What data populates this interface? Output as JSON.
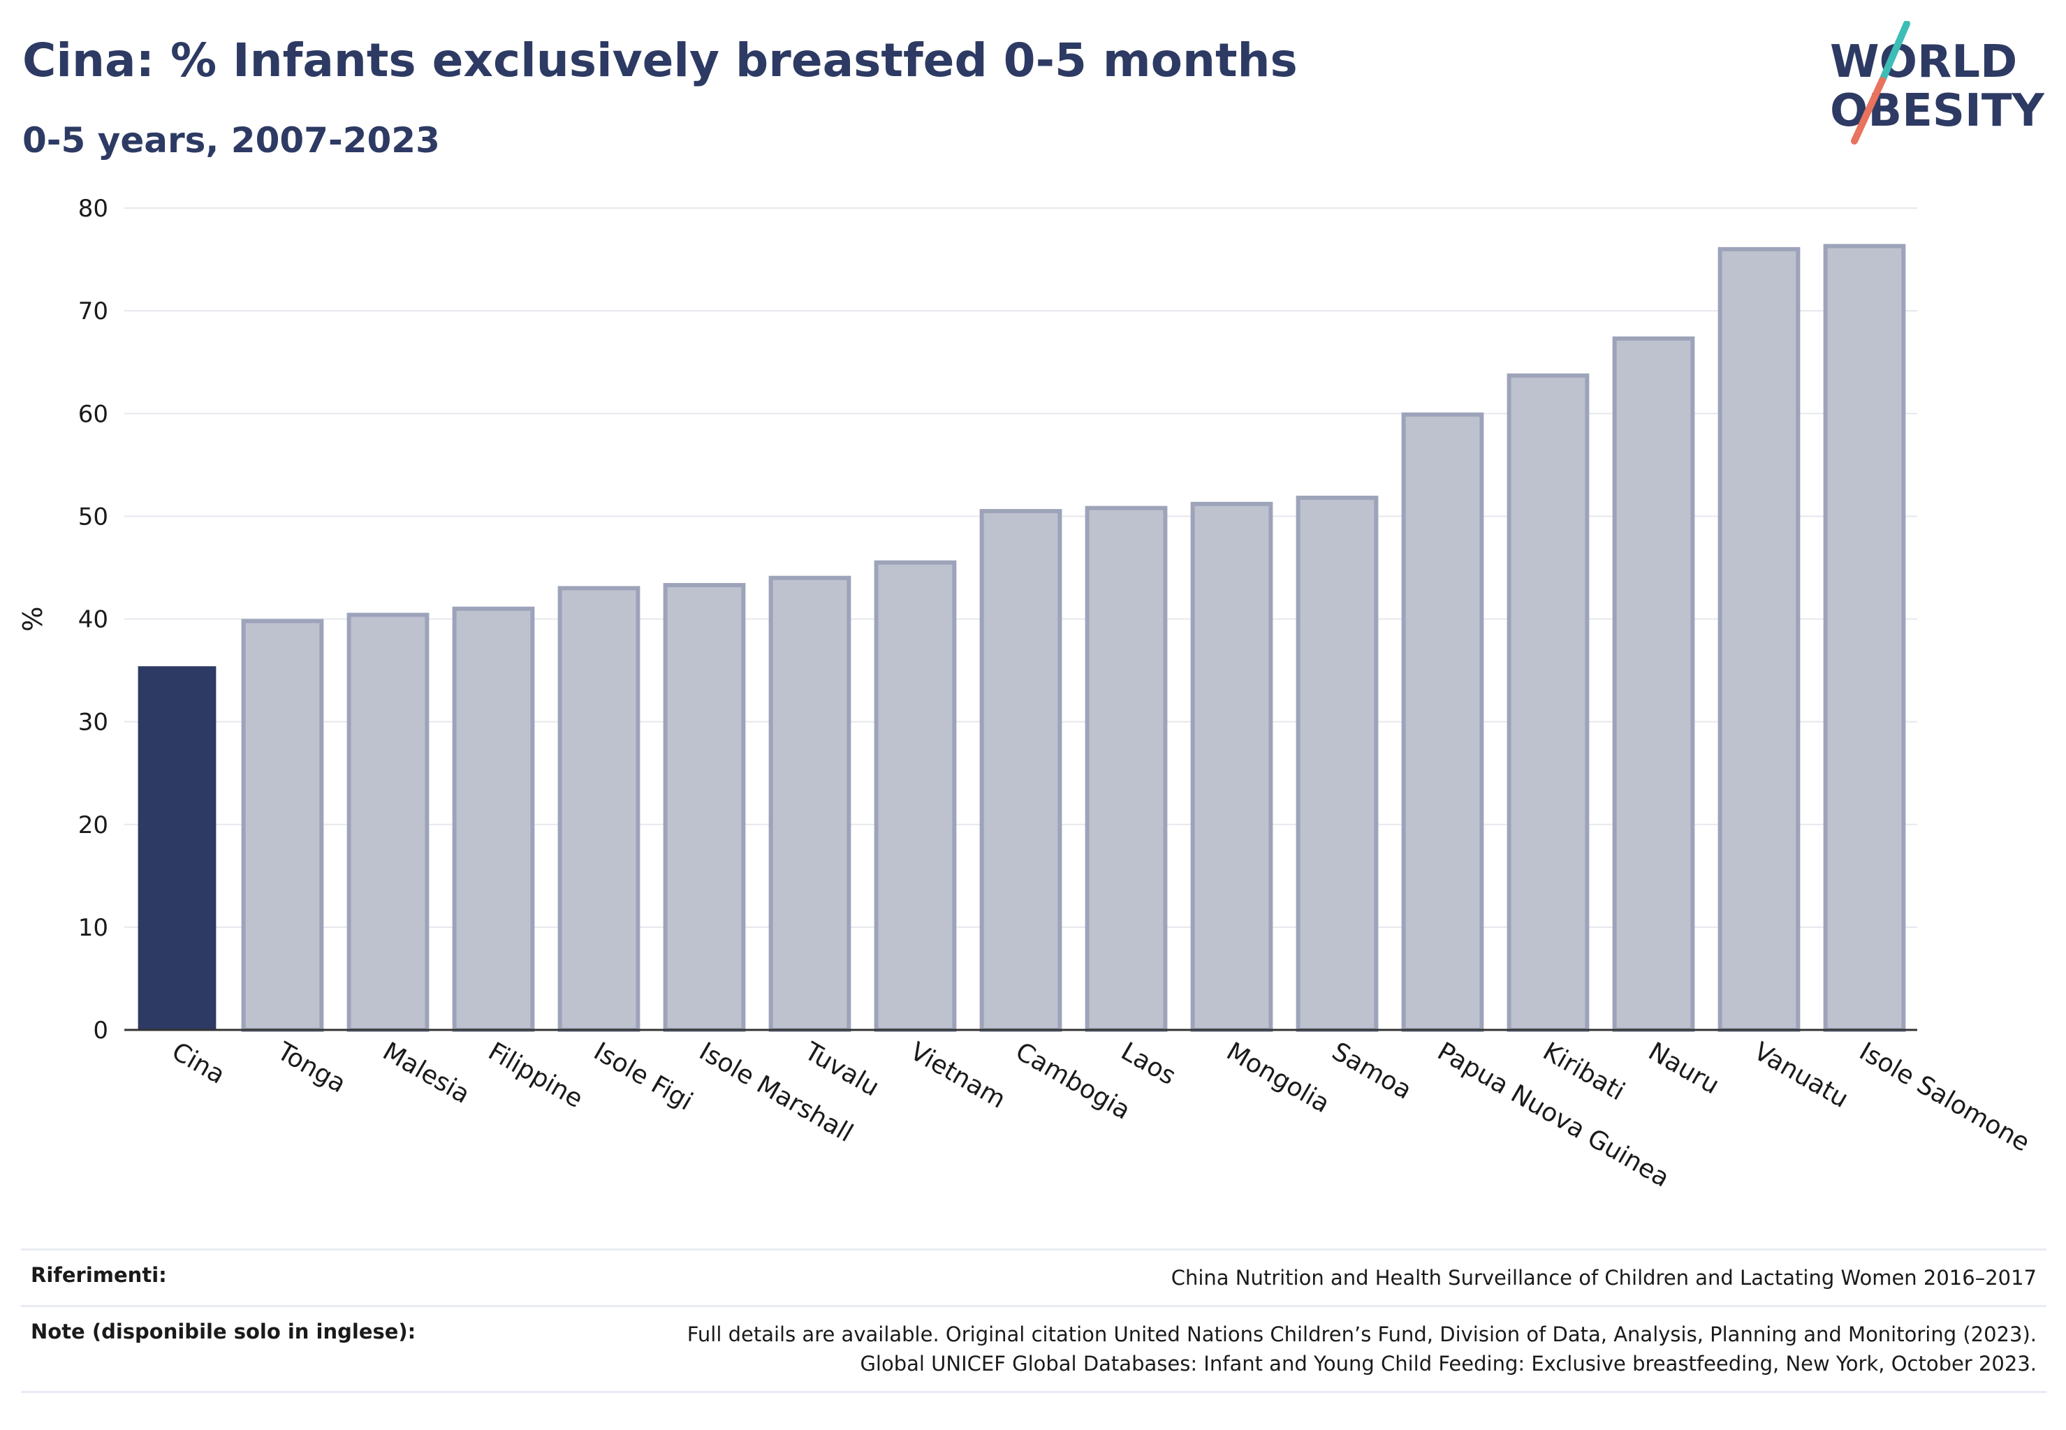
{
  "header": {
    "title": "Cina: % Infants exclusively breastfed 0-5 months",
    "subtitle": "0-5 years, 2007-2023"
  },
  "logo": {
    "line1": "WORLD",
    "line2": "OBESITY",
    "accent_teal": "#3dbdb6",
    "accent_coral": "#e8735e",
    "text_color": "#2d3a63"
  },
  "colors": {
    "highlight": "#2d3a63",
    "bar_fill": "#bec2cf",
    "bar_stroke": "#9da3b9",
    "grid": "#e6e8ee"
  },
  "chart_data": {
    "type": "bar",
    "ylabel": "%",
    "xlabel": "",
    "ylim": [
      0,
      80
    ],
    "yticks": [
      0,
      10,
      20,
      30,
      40,
      50,
      60,
      70,
      80
    ],
    "grid": true,
    "highlight": "Cina",
    "categories": [
      "Cina",
      "Tonga",
      "Malesia",
      "Filippine",
      "Isole Figi",
      "Isole Marshall",
      "Tuvalu",
      "Vietnam",
      "Cambogia",
      "Laos",
      "Mongolia",
      "Samoa",
      "Papua Nuova Guinea",
      "Kiribati",
      "Nauru",
      "Vanuatu",
      "Isole Salomone"
    ],
    "values": [
      35.4,
      39.8,
      40.4,
      41.0,
      43.0,
      43.3,
      44.0,
      45.5,
      50.5,
      50.8,
      51.2,
      51.8,
      59.9,
      63.7,
      67.3,
      76.0,
      76.3
    ]
  },
  "footer": {
    "references_label": "Riferimenti:",
    "references_value": "China Nutrition and Health Surveillance of Children and Lactating Women 2016–2017",
    "notes_label": "Note (disponibile solo in inglese):",
    "notes_line1": "Full details are available. Original citation United Nations Children’s Fund, Division of Data, Analysis, Planning and Monitoring (2023).",
    "notes_line2": "Global UNICEF Global Databases: Infant and Young Child Feeding: Exclusive breastfeeding, New York, October 2023."
  }
}
